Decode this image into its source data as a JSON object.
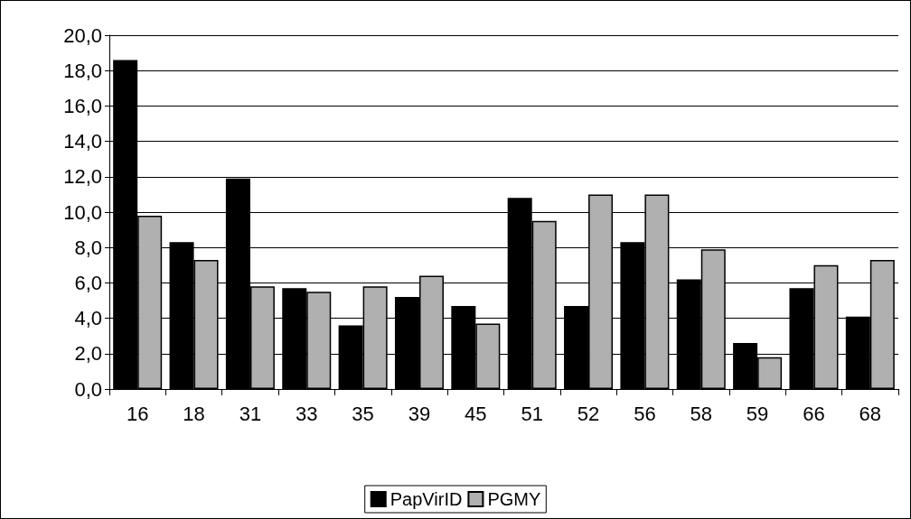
{
  "chart_data": {
    "type": "bar",
    "categories": [
      "16",
      "18",
      "31",
      "33",
      "35",
      "39",
      "45",
      "51",
      "52",
      "56",
      "58",
      "59",
      "66",
      "68"
    ],
    "series": [
      {
        "name": "PapVirID",
        "color": "#000000",
        "values": [
          18.6,
          8.3,
          11.9,
          5.7,
          3.6,
          5.2,
          4.7,
          10.8,
          4.7,
          8.3,
          6.2,
          2.6,
          5.7,
          4.1
        ]
      },
      {
        "name": "PGMY",
        "color": "#b0b0b0",
        "values": [
          9.8,
          7.3,
          5.8,
          5.5,
          5.8,
          6.4,
          3.7,
          9.5,
          11.0,
          11.0,
          7.9,
          1.8,
          7.0,
          7.3
        ]
      }
    ],
    "ylim": [
      0,
      20
    ],
    "yticks": [
      {
        "value": 0,
        "label": "0,0"
      },
      {
        "value": 2,
        "label": "2,0"
      },
      {
        "value": 4,
        "label": "4,0"
      },
      {
        "value": 6,
        "label": "6,0"
      },
      {
        "value": 8,
        "label": "8,0"
      },
      {
        "value": 10,
        "label": "10,0"
      },
      {
        "value": 12,
        "label": "12,0"
      },
      {
        "value": 14,
        "label": "14,0"
      },
      {
        "value": 16,
        "label": "16,0"
      },
      {
        "value": 18,
        "label": "18,0"
      },
      {
        "value": 20,
        "label": "20,0"
      }
    ],
    "grid": "y",
    "legend": "bottom"
  }
}
